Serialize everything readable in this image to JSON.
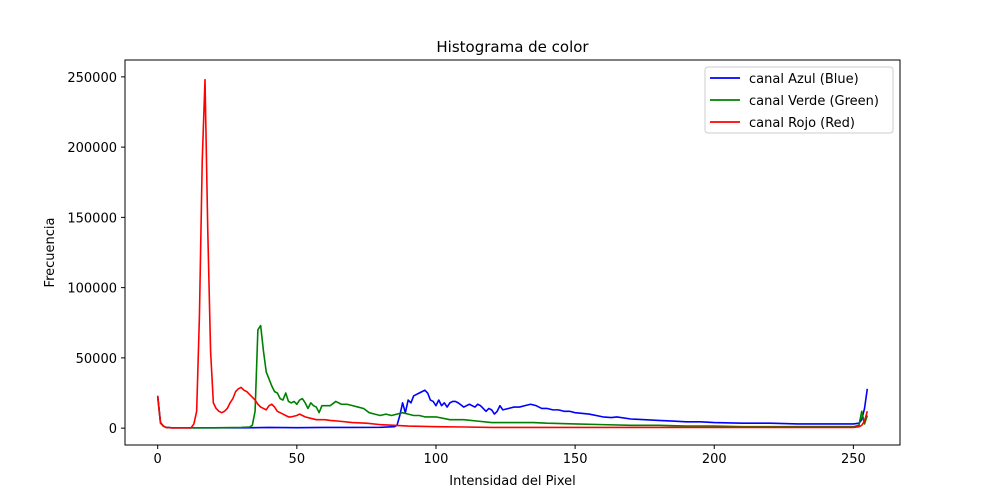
{
  "chart_data": {
    "type": "line",
    "title": "Histograma de color",
    "xlabel": "Intensidad del Pixel",
    "ylabel": "Frecuencia",
    "xlim": [
      -11.75,
      266.75
    ],
    "ylim": [
      -12000,
      262000
    ],
    "xticks": [
      0,
      50,
      100,
      150,
      200,
      250
    ],
    "yticks": [
      0,
      50000,
      100000,
      150000,
      200000,
      250000
    ],
    "legend_position": "top-right",
    "grid": false,
    "series": [
      {
        "name": "canal Azul (Blue)",
        "color": "#0000ff",
        "points": [
          [
            0,
            23000
          ],
          [
            1,
            4000
          ],
          [
            2,
            1500
          ],
          [
            3,
            500
          ],
          [
            5,
            200
          ],
          [
            10,
            200
          ],
          [
            20,
            200
          ],
          [
            30,
            200
          ],
          [
            40,
            500
          ],
          [
            50,
            300
          ],
          [
            60,
            500
          ],
          [
            70,
            500
          ],
          [
            80,
            600
          ],
          [
            85,
            1000
          ],
          [
            86,
            2000
          ],
          [
            87,
            9000
          ],
          [
            88,
            18000
          ],
          [
            89,
            11000
          ],
          [
            90,
            20000
          ],
          [
            91,
            18000
          ],
          [
            92,
            23000
          ],
          [
            93,
            24000
          ],
          [
            94,
            25000
          ],
          [
            95,
            26000
          ],
          [
            96,
            27000
          ],
          [
            97,
            25000
          ],
          [
            98,
            20000
          ],
          [
            99,
            19000
          ],
          [
            100,
            16000
          ],
          [
            101,
            20000
          ],
          [
            102,
            16000
          ],
          [
            103,
            18000
          ],
          [
            104,
            15000
          ],
          [
            105,
            18000
          ],
          [
            106,
            19000
          ],
          [
            107,
            19000
          ],
          [
            108,
            18000
          ],
          [
            110,
            15000
          ],
          [
            112,
            17000
          ],
          [
            114,
            15000
          ],
          [
            115,
            17000
          ],
          [
            116,
            16000
          ],
          [
            118,
            12000
          ],
          [
            119,
            14000
          ],
          [
            120,
            13000
          ],
          [
            121,
            10000
          ],
          [
            122,
            12000
          ],
          [
            123,
            16000
          ],
          [
            124,
            13000
          ],
          [
            126,
            14000
          ],
          [
            128,
            15000
          ],
          [
            130,
            15000
          ],
          [
            132,
            16000
          ],
          [
            134,
            17000
          ],
          [
            136,
            16000
          ],
          [
            138,
            14000
          ],
          [
            140,
            14000
          ],
          [
            142,
            13000
          ],
          [
            144,
            13000
          ],
          [
            146,
            12000
          ],
          [
            148,
            12000
          ],
          [
            150,
            11000
          ],
          [
            155,
            10000
          ],
          [
            160,
            8000
          ],
          [
            163,
            7500
          ],
          [
            165,
            8000
          ],
          [
            170,
            6500
          ],
          [
            175,
            6000
          ],
          [
            180,
            5500
          ],
          [
            185,
            5000
          ],
          [
            190,
            4500
          ],
          [
            195,
            4500
          ],
          [
            200,
            4000
          ],
          [
            210,
            3500
          ],
          [
            220,
            3500
          ],
          [
            230,
            3000
          ],
          [
            240,
            3000
          ],
          [
            245,
            3000
          ],
          [
            250,
            3000
          ],
          [
            252,
            3500
          ],
          [
            253,
            6000
          ],
          [
            254,
            14000
          ],
          [
            255,
            28000
          ]
        ]
      },
      {
        "name": "canal Verde (Green)",
        "color": "#008000",
        "points": [
          [
            0,
            22000
          ],
          [
            1,
            4000
          ],
          [
            2,
            1500
          ],
          [
            3,
            500
          ],
          [
            5,
            200
          ],
          [
            10,
            200
          ],
          [
            20,
            200
          ],
          [
            30,
            500
          ],
          [
            33,
            800
          ],
          [
            34,
            2000
          ],
          [
            35,
            12000
          ],
          [
            36,
            70000
          ],
          [
            37,
            73000
          ],
          [
            38,
            55000
          ],
          [
            39,
            40000
          ],
          [
            40,
            35000
          ],
          [
            41,
            30000
          ],
          [
            42,
            26000
          ],
          [
            43,
            25000
          ],
          [
            44,
            21000
          ],
          [
            45,
            20000
          ],
          [
            46,
            25000
          ],
          [
            47,
            19000
          ],
          [
            48,
            18000
          ],
          [
            49,
            19000
          ],
          [
            50,
            17000
          ],
          [
            51,
            20000
          ],
          [
            52,
            21000
          ],
          [
            53,
            18000
          ],
          [
            54,
            14000
          ],
          [
            55,
            18000
          ],
          [
            56,
            16000
          ],
          [
            57,
            15000
          ],
          [
            58,
            11000
          ],
          [
            59,
            16000
          ],
          [
            60,
            16000
          ],
          [
            62,
            16000
          ],
          [
            64,
            19000
          ],
          [
            66,
            17000
          ],
          [
            68,
            17000
          ],
          [
            70,
            16000
          ],
          [
            72,
            15000
          ],
          [
            74,
            14000
          ],
          [
            76,
            11000
          ],
          [
            78,
            10000
          ],
          [
            80,
            9000
          ],
          [
            82,
            10000
          ],
          [
            84,
            9000
          ],
          [
            86,
            10000
          ],
          [
            88,
            11000
          ],
          [
            90,
            10000
          ],
          [
            92,
            9000
          ],
          [
            94,
            9000
          ],
          [
            96,
            8000
          ],
          [
            100,
            8000
          ],
          [
            105,
            6000
          ],
          [
            110,
            6000
          ],
          [
            115,
            5000
          ],
          [
            120,
            4000
          ],
          [
            125,
            4000
          ],
          [
            130,
            4000
          ],
          [
            135,
            4000
          ],
          [
            140,
            3500
          ],
          [
            150,
            3000
          ],
          [
            160,
            2500
          ],
          [
            170,
            2000
          ],
          [
            180,
            2000
          ],
          [
            190,
            1500
          ],
          [
            200,
            1500
          ],
          [
            210,
            1000
          ],
          [
            220,
            1000
          ],
          [
            230,
            1000
          ],
          [
            240,
            1000
          ],
          [
            250,
            1000
          ],
          [
            252,
            2000
          ],
          [
            253,
            12000
          ],
          [
            254,
            3000
          ],
          [
            255,
            9000
          ]
        ]
      },
      {
        "name": "canal Rojo (Red)",
        "color": "#ff0000",
        "points": [
          [
            0,
            23000
          ],
          [
            1,
            3500
          ],
          [
            2,
            1500
          ],
          [
            3,
            500
          ],
          [
            5,
            200
          ],
          [
            10,
            200
          ],
          [
            12,
            200
          ],
          [
            13,
            3000
          ],
          [
            14,
            12000
          ],
          [
            15,
            80000
          ],
          [
            16,
            190000
          ],
          [
            17,
            248000
          ],
          [
            18,
            140000
          ],
          [
            19,
            55000
          ],
          [
            20,
            18000
          ],
          [
            21,
            14000
          ],
          [
            22,
            12000
          ],
          [
            23,
            11000
          ],
          [
            24,
            12000
          ],
          [
            25,
            14000
          ],
          [
            26,
            18000
          ],
          [
            27,
            21000
          ],
          [
            28,
            26000
          ],
          [
            29,
            28000
          ],
          [
            30,
            29000
          ],
          [
            31,
            27000
          ],
          [
            32,
            26000
          ],
          [
            33,
            24000
          ],
          [
            34,
            22000
          ],
          [
            35,
            20000
          ],
          [
            36,
            17000
          ],
          [
            37,
            15000
          ],
          [
            38,
            14000
          ],
          [
            39,
            13000
          ],
          [
            40,
            16000
          ],
          [
            41,
            17000
          ],
          [
            42,
            15000
          ],
          [
            43,
            12000
          ],
          [
            44,
            11000
          ],
          [
            45,
            10000
          ],
          [
            46,
            9000
          ],
          [
            47,
            8000
          ],
          [
            48,
            8000
          ],
          [
            50,
            9000
          ],
          [
            51,
            10000
          ],
          [
            52,
            9000
          ],
          [
            53,
            8000
          ],
          [
            55,
            7000
          ],
          [
            57,
            6000
          ],
          [
            60,
            6000
          ],
          [
            62,
            5500
          ],
          [
            65,
            5000
          ],
          [
            70,
            4000
          ],
          [
            75,
            3500
          ],
          [
            80,
            2500
          ],
          [
            85,
            2000
          ],
          [
            90,
            1500
          ],
          [
            100,
            1000
          ],
          [
            110,
            800
          ],
          [
            120,
            500
          ],
          [
            130,
            500
          ],
          [
            140,
            500
          ],
          [
            150,
            500
          ],
          [
            160,
            500
          ],
          [
            170,
            500
          ],
          [
            180,
            500
          ],
          [
            190,
            500
          ],
          [
            200,
            500
          ],
          [
            210,
            500
          ],
          [
            220,
            500
          ],
          [
            230,
            500
          ],
          [
            240,
            500
          ],
          [
            250,
            500
          ],
          [
            252,
            1000
          ],
          [
            253,
            2000
          ],
          [
            254,
            5000
          ],
          [
            255,
            12000
          ]
        ]
      }
    ]
  }
}
